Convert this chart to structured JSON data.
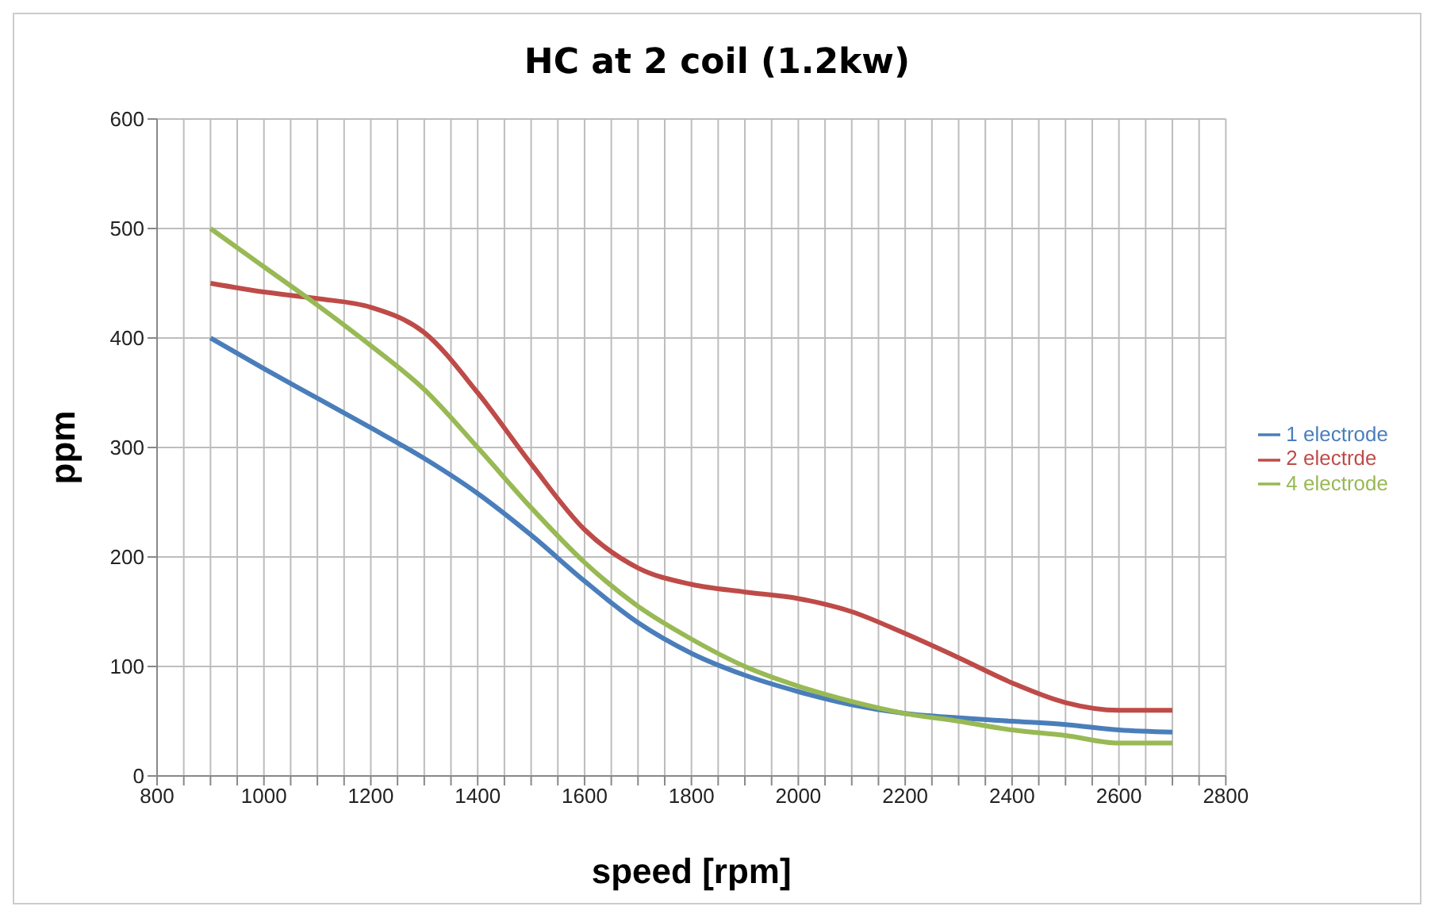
{
  "chart_data": {
    "type": "line",
    "title": "HC at 2 coil (1.2kw)",
    "xlabel": "speed [rpm]",
    "ylabel": "ppm",
    "x": [
      900,
      1000,
      1100,
      1200,
      1300,
      1400,
      1500,
      1600,
      1700,
      1800,
      1900,
      2000,
      2100,
      2200,
      2300,
      2400,
      2500,
      2600,
      2700
    ],
    "series": [
      {
        "name": "1 electrode",
        "color": "#4a7ebb",
        "values": [
          400,
          372,
          345,
          318,
          290,
          258,
          220,
          178,
          140,
          112,
          92,
          77,
          65,
          57,
          53,
          50,
          47,
          42,
          40
        ]
      },
      {
        "name": "2 electrde",
        "color": "#be4b48",
        "values": [
          450,
          442,
          436,
          428,
          405,
          350,
          285,
          225,
          190,
          175,
          168,
          162,
          150,
          130,
          108,
          85,
          67,
          60,
          60
        ]
      },
      {
        "name": "4 electrode",
        "color": "#98b954",
        "values": [
          500,
          465,
          430,
          393,
          353,
          300,
          245,
          195,
          155,
          125,
          100,
          82,
          68,
          57,
          50,
          42,
          37,
          30,
          30
        ]
      }
    ],
    "xlim": [
      800,
      2800
    ],
    "xticks": [
      800,
      {
        "value": 850,
        "label": null
      },
      {
        "value": 900,
        "label": null
      },
      {
        "value": 950,
        "label": null
      },
      1000,
      {
        "value": 1050,
        "label": null
      },
      {
        "value": 1100,
        "label": null
      },
      {
        "value": 1150,
        "label": null
      },
      1200,
      {
        "value": 1250,
        "label": null
      },
      {
        "value": 1300,
        "label": null
      },
      {
        "value": 1350,
        "label": null
      },
      1400,
      {
        "value": 1450,
        "label": null
      },
      {
        "value": 1500,
        "label": null
      },
      {
        "value": 1550,
        "label": null
      },
      1600,
      {
        "value": 1650,
        "label": null
      },
      {
        "value": 1700,
        "label": null
      },
      {
        "value": 1750,
        "label": null
      },
      1800,
      {
        "value": 1850,
        "label": null
      },
      {
        "value": 1900,
        "label": null
      },
      {
        "value": 1950,
        "label": null
      },
      2000,
      {
        "value": 2050,
        "label": null
      },
      {
        "value": 2100,
        "label": null
      },
      {
        "value": 2150,
        "label": null
      },
      2200,
      {
        "value": 2250,
        "label": null
      },
      {
        "value": 2300,
        "label": null
      },
      {
        "value": 2350,
        "label": null
      },
      2400,
      {
        "value": 2450,
        "label": null
      },
      {
        "value": 2500,
        "label": null
      },
      {
        "value": 2550,
        "label": null
      },
      2600,
      {
        "value": 2650,
        "label": null
      },
      {
        "value": 2700,
        "label": null
      },
      {
        "value": 2750,
        "label": null
      },
      2800
    ],
    "ylim": [
      0,
      600
    ],
    "yticks": [
      0,
      100,
      200,
      300,
      400,
      500,
      600
    ],
    "grid": true,
    "legend": "right",
    "marker": "none",
    "line_style": "solid"
  }
}
